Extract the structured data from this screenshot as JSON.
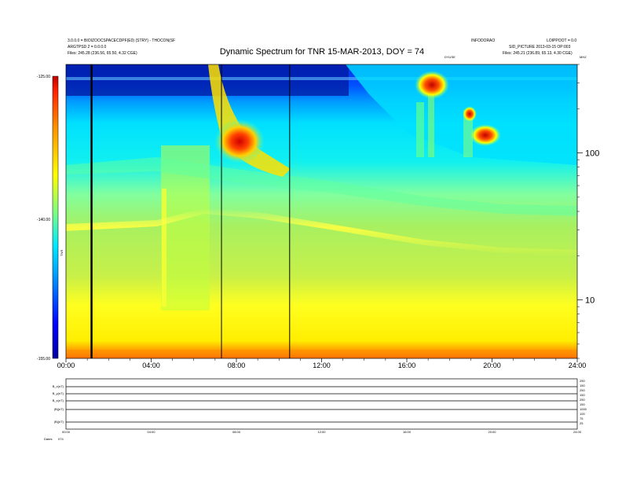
{
  "header": {
    "left_line1": "3.0.0.0 = BIOIZOOCSPACECDPF(E0) (STRY) - THOCON(SF",
    "left_line2": "ARGTPSD 2 = 0.0.0.0",
    "left_line3": "Files: 245.28 (236.56, 65.50, 4.32 CGE)",
    "right_line1": "INFODORAO",
    "right_line1b": "LOIPPOOT = 0.0",
    "right_line2": "SID_PICTURE 2013-03-15 OP:003",
    "right_line3": "Files: 245.21 (236.89, 65.13, 4.30 CGE)",
    "right_small": "DYUSE",
    "right_corner": "MHZ"
  },
  "colorbar": {
    "ticks": [
      "-125.00",
      "-140.00",
      "-155.00"
    ],
    "label": "TNR"
  },
  "chart_data": {
    "type": "heatmap",
    "title": "Dynamic Spectrum for TNR 15-MAR-2013, DOY = 74",
    "xlabel": "",
    "ylabel": "",
    "x_ticks": [
      "00:00",
      "04:00",
      "08:00",
      "12:00",
      "16:00",
      "20:00",
      "24:00"
    ],
    "x_range_hours": [
      0,
      24
    ],
    "y_scale": "log",
    "y_ticks": [
      10,
      100
    ],
    "y_range": [
      4,
      400
    ],
    "z_range": [
      -155,
      -125
    ],
    "colormap": [
      "#0000a0",
      "#0000ff",
      "#0090ff",
      "#00e0ff",
      "#40ffc0",
      "#a0ff40",
      "#ffff00",
      "#ff9000",
      "#ff2000",
      "#a00000"
    ],
    "vertical_lines_hours": [
      1.2,
      7.3,
      10.5
    ]
  },
  "bottom_panel": {
    "row_labels": [
      "B_x(nT)",
      "B_y(nT)",
      "B_z(nT)",
      "|B|(nT)",
      "|B|(nT)"
    ],
    "right_ticks": [
      "250",
      "150",
      "250",
      "150",
      "250",
      "150",
      "1000",
      "100",
      "75",
      "25"
    ],
    "x_ticks": [
      "00:00",
      "04:00",
      "08:00",
      "12:00",
      "16:00",
      "20:00",
      "24:00"
    ],
    "footer_label": "Dates",
    "footer_value": "074"
  }
}
